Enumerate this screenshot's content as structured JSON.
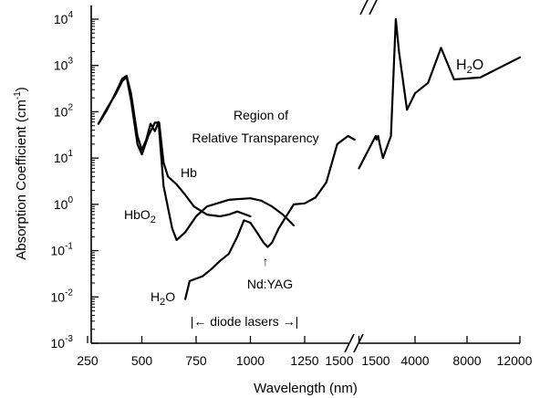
{
  "chart_data": {
    "type": "line",
    "xlabel": "Wavelength (nm)",
    "ylabel": "Absorption Coefficient (cm",
    "ylabel_sup": "-1",
    "ylabel_tail": ")",
    "yscale": "log",
    "ylim": [
      0.001,
      10000
    ],
    "y_ticks": [
      {
        "base": "10",
        "exp": "4"
      },
      {
        "base": "10",
        "exp": "3"
      },
      {
        "base": "10",
        "exp": "2"
      },
      {
        "base": "10",
        "exp": "1"
      },
      {
        "base": "10",
        "exp": "0"
      },
      {
        "base": "10",
        "exp": "-1"
      },
      {
        "base": "10",
        "exp": "-2"
      },
      {
        "base": "10",
        "exp": "-3"
      }
    ],
    "x_ticks": [
      "250",
      "500",
      "750",
      "1000",
      "1250",
      "1500",
      "1500",
      "4000",
      "8000",
      "12000"
    ],
    "x_segments": [
      {
        "range": [
          250,
          1500
        ],
        "scale": "linear"
      },
      {
        "range": [
          1500,
          12000
        ],
        "scale": "broken"
      }
    ],
    "series": [
      {
        "name": "Hb",
        "points": [
          [
            300,
            55
          ],
          [
            340,
            120
          ],
          [
            380,
            240
          ],
          [
            410,
            460
          ],
          [
            430,
            560
          ],
          [
            450,
            180
          ],
          [
            480,
            20
          ],
          [
            500,
            12
          ],
          [
            530,
            30
          ],
          [
            560,
            58
          ],
          [
            580,
            58
          ],
          [
            600,
            8
          ],
          [
            620,
            4
          ],
          [
            660,
            2.7
          ],
          [
            700,
            1.6
          ],
          [
            740,
            0.9
          ],
          [
            800,
            0.6
          ],
          [
            860,
            0.55
          ],
          [
            900,
            0.6
          ],
          [
            940,
            0.7
          ],
          [
            1000,
            0.55
          ]
        ]
      },
      {
        "name": "HbO2",
        "points": [
          [
            300,
            55
          ],
          [
            340,
            110
          ],
          [
            380,
            260
          ],
          [
            410,
            520
          ],
          [
            430,
            600
          ],
          [
            450,
            250
          ],
          [
            480,
            30
          ],
          [
            500,
            15
          ],
          [
            520,
            25
          ],
          [
            540,
            55
          ],
          [
            560,
            38
          ],
          [
            577,
            60
          ],
          [
            600,
            2.5
          ],
          [
            640,
            0.3
          ],
          [
            660,
            0.17
          ],
          [
            700,
            0.25
          ],
          [
            750,
            0.55
          ],
          [
            800,
            0.9
          ],
          [
            900,
            1.25
          ],
          [
            1000,
            1.35
          ],
          [
            1050,
            1.2
          ],
          [
            1100,
            0.9
          ],
          [
            1150,
            0.6
          ],
          [
            1200,
            0.35
          ]
        ]
      },
      {
        "name": "H2O",
        "points": [
          [
            700,
            0.009
          ],
          [
            720,
            0.022
          ],
          [
            780,
            0.028
          ],
          [
            820,
            0.04
          ],
          [
            860,
            0.06
          ],
          [
            900,
            0.085
          ],
          [
            940,
            0.2
          ],
          [
            970,
            0.45
          ],
          [
            1000,
            0.4
          ],
          [
            1030,
            0.25
          ],
          [
            1060,
            0.15
          ],
          [
            1080,
            0.12
          ],
          [
            1100,
            0.15
          ],
          [
            1130,
            0.3
          ],
          [
            1170,
            0.6
          ],
          [
            1200,
            1.0
          ],
          [
            1250,
            1.05
          ],
          [
            1300,
            1.4
          ],
          [
            1350,
            3
          ],
          [
            1400,
            20
          ],
          [
            1450,
            30
          ],
          [
            1480,
            25
          ]
        ]
      },
      {
        "name": "H2O",
        "points": [
          [
            1500,
            6
          ],
          [
            1550,
            30
          ],
          [
            1600,
            25
          ],
          [
            1700,
            30
          ],
          [
            1800,
            20
          ],
          [
            2000,
            10
          ],
          [
            2500,
            30
          ],
          [
            2800,
            10000
          ],
          [
            3000,
            2000
          ],
          [
            3500,
            110
          ],
          [
            4000,
            250
          ],
          [
            5000,
            420
          ],
          [
            6000,
            2400
          ],
          [
            7000,
            500
          ],
          [
            9000,
            550
          ],
          [
            12000,
            1500
          ]
        ]
      }
    ],
    "annotations": {
      "hb": "Hb",
      "hbo2_base": "HbO",
      "hbo2_sub": "2",
      "h2o_left_base": "H",
      "h2o_left_sub": "2",
      "h2o_left_tail": "O",
      "h2o_right_base": "H",
      "h2o_right_sub": "2",
      "h2o_right_tail": "O",
      "region_line1": "Region of",
      "region_line2": "Relative Transparency",
      "ndyag": "Nd:YAG",
      "ndyag_arrow": "↑",
      "diode": "|← diode lasers →|"
    },
    "grid": false,
    "legend": "none"
  }
}
